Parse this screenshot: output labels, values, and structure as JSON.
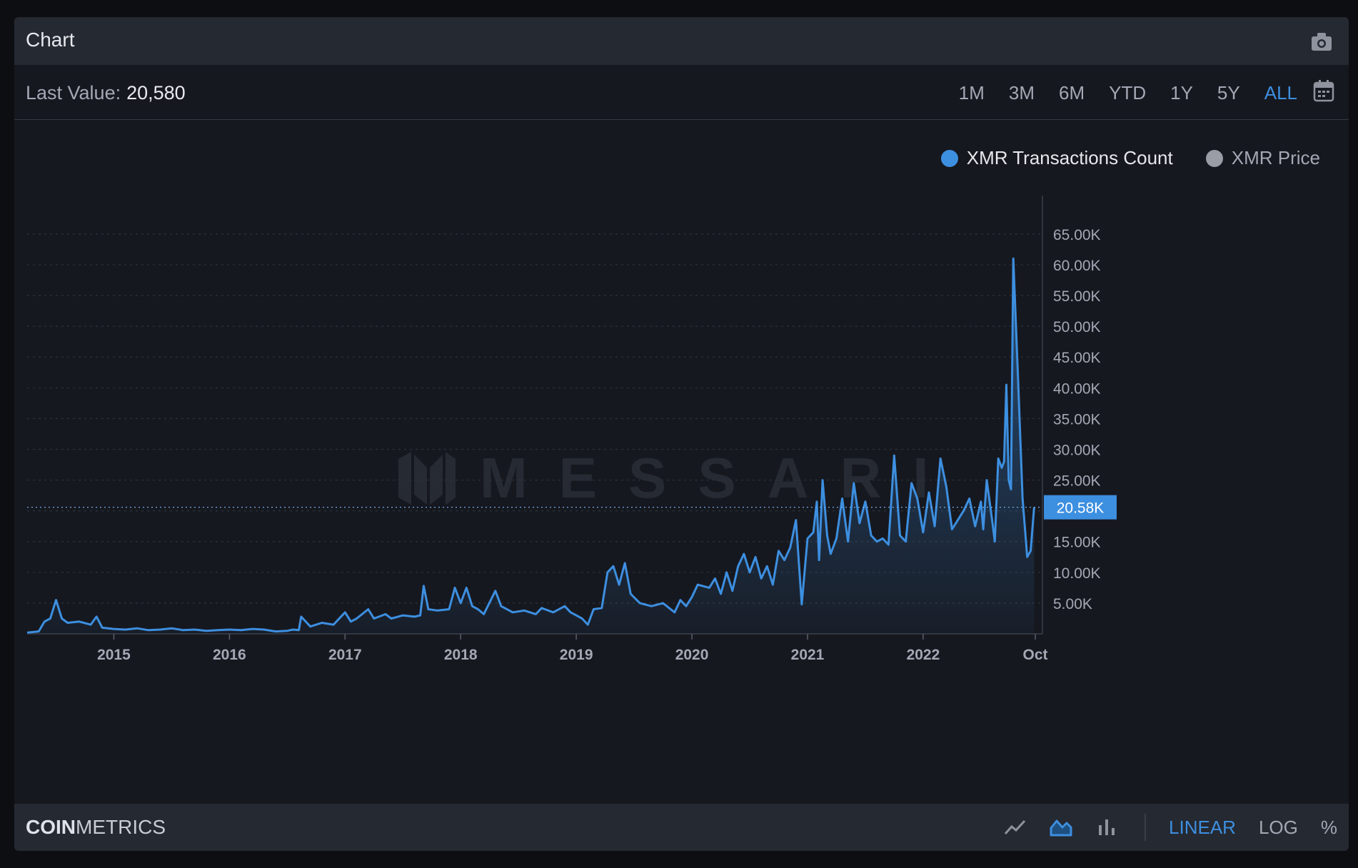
{
  "header": {
    "title": "Chart"
  },
  "toolbar": {
    "last_value_label": "Last Value:",
    "last_value": "20,580",
    "ranges": [
      "1M",
      "3M",
      "6M",
      "YTD",
      "1Y",
      "5Y",
      "ALL"
    ],
    "active_range": "ALL"
  },
  "legend": [
    {
      "label": "XMR Transactions Count",
      "color": "#3d8fe0",
      "active": true
    },
    {
      "label": "XMR Price",
      "color": "#9a9ca6",
      "active": false
    }
  ],
  "watermark": "MESSARI",
  "footer": {
    "brand_bold": "COIN",
    "brand_light": "METRICS",
    "scales": [
      "LINEAR",
      "LOG",
      "%"
    ],
    "active_scale": "LINEAR"
  },
  "colors": {
    "accent": "#3d8fe0",
    "background": "#16181f",
    "bar": "#252932"
  },
  "chart_data": {
    "type": "area",
    "series_name": "XMR Transactions Count",
    "x_tick_labels": [
      "2015",
      "2016",
      "2017",
      "2018",
      "2019",
      "2020",
      "2021",
      "2022",
      "Oct"
    ],
    "y_tick_labels": [
      "5.00K",
      "10.00K",
      "15.00K",
      "20.00K",
      "25.00K",
      "30.00K",
      "35.00K",
      "40.00K",
      "45.00K",
      "50.00K",
      "55.00K",
      "60.00K",
      "65.00K"
    ],
    "ylim": [
      0,
      68000
    ],
    "grid": true,
    "current_value_label": "20.58K",
    "current_value": 20580,
    "points": [
      [
        2014.25,
        200
      ],
      [
        2014.35,
        400
      ],
      [
        2014.4,
        2000
      ],
      [
        2014.45,
        2500
      ],
      [
        2014.5,
        5500
      ],
      [
        2014.55,
        2500
      ],
      [
        2014.6,
        1800
      ],
      [
        2014.7,
        2000
      ],
      [
        2014.8,
        1500
      ],
      [
        2014.85,
        2800
      ],
      [
        2014.9,
        1000
      ],
      [
        2015.0,
        800
      ],
      [
        2015.1,
        700
      ],
      [
        2015.2,
        900
      ],
      [
        2015.3,
        600
      ],
      [
        2015.4,
        700
      ],
      [
        2015.5,
        900
      ],
      [
        2015.6,
        600
      ],
      [
        2015.7,
        700
      ],
      [
        2015.8,
        500
      ],
      [
        2015.9,
        600
      ],
      [
        2016.0,
        700
      ],
      [
        2016.1,
        600
      ],
      [
        2016.2,
        800
      ],
      [
        2016.3,
        700
      ],
      [
        2016.4,
        400
      ],
      [
        2016.5,
        500
      ],
      [
        2016.55,
        700
      ],
      [
        2016.6,
        600
      ],
      [
        2016.62,
        2800
      ],
      [
        2016.7,
        1200
      ],
      [
        2016.8,
        1800
      ],
      [
        2016.9,
        1500
      ],
      [
        2017.0,
        3500
      ],
      [
        2017.05,
        2000
      ],
      [
        2017.1,
        2500
      ],
      [
        2017.2,
        4000
      ],
      [
        2017.25,
        2500
      ],
      [
        2017.35,
        3200
      ],
      [
        2017.4,
        2500
      ],
      [
        2017.5,
        3000
      ],
      [
        2017.6,
        2800
      ],
      [
        2017.65,
        3000
      ],
      [
        2017.68,
        7800
      ],
      [
        2017.72,
        4000
      ],
      [
        2017.8,
        3800
      ],
      [
        2017.9,
        4000
      ],
      [
        2017.95,
        7500
      ],
      [
        2018.0,
        5000
      ],
      [
        2018.05,
        7500
      ],
      [
        2018.1,
        4500
      ],
      [
        2018.15,
        4000
      ],
      [
        2018.2,
        3200
      ],
      [
        2018.3,
        7000
      ],
      [
        2018.35,
        4500
      ],
      [
        2018.45,
        3500
      ],
      [
        2018.55,
        3800
      ],
      [
        2018.65,
        3200
      ],
      [
        2018.7,
        4200
      ],
      [
        2018.8,
        3500
      ],
      [
        2018.9,
        4500
      ],
      [
        2018.95,
        3500
      ],
      [
        2019.0,
        3000
      ],
      [
        2019.05,
        2500
      ],
      [
        2019.1,
        1500
      ],
      [
        2019.15,
        4000
      ],
      [
        2019.22,
        4200
      ],
      [
        2019.27,
        10000
      ],
      [
        2019.32,
        11000
      ],
      [
        2019.37,
        8000
      ],
      [
        2019.42,
        11500
      ],
      [
        2019.47,
        6500
      ],
      [
        2019.55,
        5000
      ],
      [
        2019.65,
        4500
      ],
      [
        2019.75,
        5000
      ],
      [
        2019.85,
        3500
      ],
      [
        2019.9,
        5500
      ],
      [
        2019.95,
        4500
      ],
      [
        2020.0,
        6000
      ],
      [
        2020.05,
        8000
      ],
      [
        2020.15,
        7500
      ],
      [
        2020.2,
        9000
      ],
      [
        2020.25,
        6500
      ],
      [
        2020.3,
        10000
      ],
      [
        2020.35,
        7000
      ],
      [
        2020.4,
        11000
      ],
      [
        2020.45,
        13000
      ],
      [
        2020.5,
        10000
      ],
      [
        2020.55,
        12500
      ],
      [
        2020.6,
        9000
      ],
      [
        2020.65,
        11000
      ],
      [
        2020.7,
        8000
      ],
      [
        2020.75,
        13500
      ],
      [
        2020.8,
        12000
      ],
      [
        2020.85,
        14000
      ],
      [
        2020.9,
        18500
      ],
      [
        2020.95,
        4800
      ],
      [
        2021.0,
        15500
      ],
      [
        2021.05,
        16500
      ],
      [
        2021.08,
        21500
      ],
      [
        2021.1,
        12000
      ],
      [
        2021.13,
        25000
      ],
      [
        2021.17,
        16000
      ],
      [
        2021.2,
        13000
      ],
      [
        2021.25,
        15500
      ],
      [
        2021.3,
        22000
      ],
      [
        2021.35,
        15000
      ],
      [
        2021.4,
        24500
      ],
      [
        2021.45,
        18000
      ],
      [
        2021.5,
        21500
      ],
      [
        2021.55,
        16000
      ],
      [
        2021.6,
        15000
      ],
      [
        2021.65,
        15500
      ],
      [
        2021.7,
        14500
      ],
      [
        2021.75,
        29000
      ],
      [
        2021.8,
        16000
      ],
      [
        2021.85,
        15000
      ],
      [
        2021.9,
        24500
      ],
      [
        2021.95,
        22000
      ],
      [
        2022.0,
        16500
      ],
      [
        2022.05,
        23000
      ],
      [
        2022.1,
        17500
      ],
      [
        2022.15,
        28500
      ],
      [
        2022.2,
        24000
      ],
      [
        2022.25,
        17000
      ],
      [
        2022.3,
        18500
      ],
      [
        2022.35,
        20000
      ],
      [
        2022.4,
        22000
      ],
      [
        2022.45,
        17500
      ],
      [
        2022.5,
        21500
      ],
      [
        2022.52,
        17000
      ],
      [
        2022.55,
        25000
      ],
      [
        2022.6,
        18000
      ],
      [
        2022.62,
        15000
      ],
      [
        2022.65,
        28500
      ],
      [
        2022.68,
        27000
      ],
      [
        2022.7,
        28000
      ],
      [
        2022.72,
        40500
      ],
      [
        2022.74,
        25000
      ],
      [
        2022.76,
        23500
      ],
      [
        2022.78,
        61000
      ],
      [
        2022.82,
        42000
      ],
      [
        2022.86,
        22000
      ],
      [
        2022.9,
        12500
      ],
      [
        2022.93,
        13500
      ],
      [
        2022.96,
        20580
      ]
    ]
  }
}
